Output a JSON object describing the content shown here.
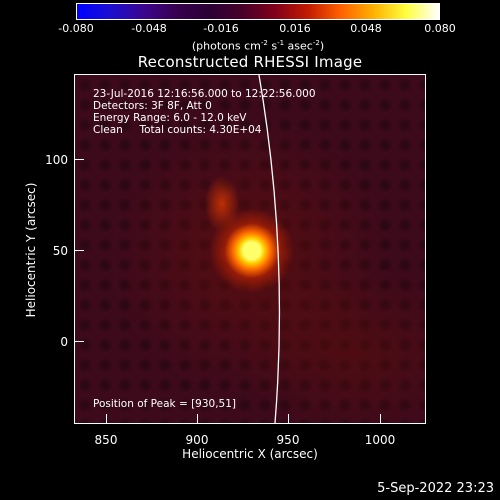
{
  "colorbar": {
    "ticks": [
      "-0.080",
      "-0.048",
      "-0.016",
      "0.016",
      "0.048",
      "0.080"
    ],
    "unit_prefix": "(photons cm",
    "unit_sup1": "-2",
    "unit_mid1": " s",
    "unit_sup2": "-1",
    "unit_mid2": " asec",
    "unit_sup3": "-2",
    "unit_suffix": ")",
    "gradient_colors": [
      "#0000ff",
      "#1a0fd0",
      "#3a0590",
      "#380050",
      "#2a0035",
      "#46002a",
      "#80001a",
      "#c01a00",
      "#ff6000",
      "#ffb000",
      "#ffff40",
      "#ffffff"
    ]
  },
  "title": "Reconstructed RHESSI Image",
  "annotations": {
    "time_range": "23-Jul-2016 12:16:56.000 to 12:22:56.000",
    "detectors": "Detectors: 3F 8F, Att 0",
    "energy": "Energy Range: 6.0 - 12.0 keV",
    "clean": "Clean     Total counts: 4.30E+04",
    "peak": "Position of Peak = [930,51]"
  },
  "axes": {
    "xlabel": "Heliocentric X (arcsec)",
    "ylabel": "Heliocentric Y (arcsec)",
    "xticks": [
      "850",
      "900",
      "950",
      "1000"
    ],
    "yticks": [
      "100",
      "50",
      "0"
    ],
    "xlim": [
      832,
      1026
    ],
    "ylim": [
      -45,
      148
    ]
  },
  "image": {
    "peak_position": [
      930,
      51
    ],
    "limb_color": "#ffffff",
    "colormap": "thermal"
  },
  "datestamp": "5-Sep-2022 23:23"
}
